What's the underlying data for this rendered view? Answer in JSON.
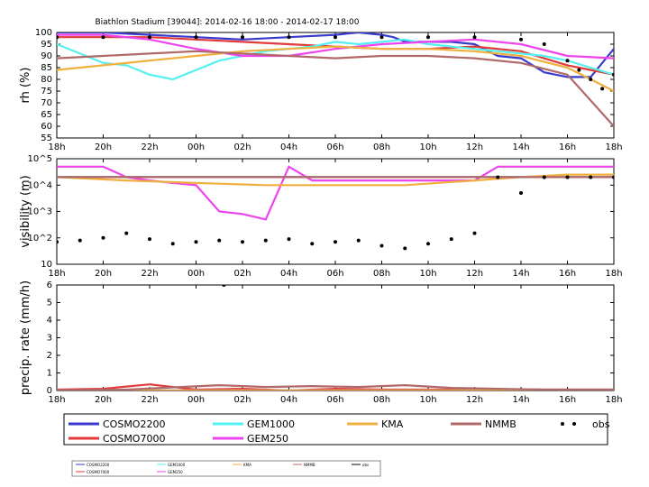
{
  "chart_data": [
    {
      "type": "line",
      "title": "Biathlon Stadium [39044]: 2014-02-16 18:00 - 2014-02-17 18:00",
      "ylabel": "rh (%)",
      "ylim": [
        55,
        100
      ],
      "yticks": [
        55,
        60,
        65,
        70,
        75,
        80,
        85,
        90,
        95,
        100
      ],
      "xlim": [
        0,
        24
      ],
      "xtick_labels": [
        "18h",
        "20h",
        "22h",
        "00h",
        "02h",
        "04h",
        "06h",
        "08h",
        "10h",
        "12h",
        "14h",
        "16h",
        "18h"
      ],
      "series": [
        {
          "name": "COSMO2200",
          "color": "#3a3acc",
          "x": [
            0,
            2,
            4,
            6,
            8,
            10,
            12,
            13,
            14,
            14.5,
            15,
            16,
            17,
            18,
            19,
            20,
            21,
            22,
            23,
            24
          ],
          "values": [
            100,
            100,
            99,
            98,
            97,
            98,
            99,
            100,
            99,
            98,
            96,
            96,
            96,
            95,
            90,
            89,
            83,
            81,
            81,
            93
          ]
        },
        {
          "name": "COSMO7000",
          "color": "#e03a3a",
          "x": [
            0,
            2,
            4,
            6,
            8,
            10,
            12,
            14,
            16,
            18,
            20,
            22,
            24
          ],
          "values": [
            98,
            98,
            98,
            97,
            96,
            95,
            94,
            93,
            93,
            94,
            92,
            86,
            82
          ]
        },
        {
          "name": "GEM1000",
          "color": "#55f0f0",
          "x": [
            0,
            1,
            2,
            3,
            4,
            5,
            6,
            7,
            8,
            9,
            10,
            11,
            12,
            13,
            14,
            15,
            16,
            17,
            18,
            19,
            20,
            21,
            22,
            23,
            24
          ],
          "values": [
            95,
            91,
            87,
            86,
            82,
            80,
            84,
            88,
            90,
            92,
            93,
            94,
            96,
            95,
            96,
            97,
            95,
            94,
            93,
            92,
            91,
            90,
            88,
            85,
            82
          ]
        },
        {
          "name": "GEM250",
          "color": "#ee44ee",
          "x": [
            0,
            2,
            4,
            6,
            8,
            10,
            12,
            14,
            16,
            18,
            20,
            22,
            24
          ],
          "values": [
            99,
            99,
            97,
            93,
            90,
            90,
            93,
            95,
            96,
            97,
            95,
            90,
            89
          ]
        },
        {
          "name": "KMA",
          "color": "#f0b040",
          "x": [
            0,
            2,
            4,
            6,
            8,
            10,
            12,
            14,
            16,
            18,
            20,
            22,
            24
          ],
          "values": [
            84,
            86,
            88,
            90,
            92,
            93,
            94,
            93,
            93,
            92,
            90,
            85,
            75
          ]
        },
        {
          "name": "NMMB",
          "color": "#b06868",
          "x": [
            0,
            2,
            4,
            6,
            8,
            10,
            12,
            14,
            16,
            18,
            20,
            22,
            24
          ],
          "values": [
            89,
            90,
            91,
            92,
            91,
            90,
            89,
            90,
            90,
            89,
            87,
            82,
            60
          ]
        },
        {
          "name": "obs",
          "color": "#000000",
          "marker": "dot",
          "x": [
            0,
            2,
            4,
            6,
            8,
            10,
            12,
            14,
            16,
            18,
            20,
            21,
            22,
            22.5,
            23,
            23.5,
            24
          ],
          "values": [
            98,
            98,
            98,
            98,
            98,
            98,
            98,
            98,
            98,
            98,
            97,
            95,
            88,
            84,
            80,
            76,
            82
          ]
        }
      ]
    },
    {
      "type": "line",
      "ylabel": "visibility (m)",
      "yscale": "log",
      "ylim": [
        10,
        100000
      ],
      "ytick_labels": [
        "10",
        "10^2",
        "10^3",
        "10^4",
        "10^5"
      ],
      "xlim": [
        0,
        24
      ],
      "xtick_labels": [
        "18h",
        "20h",
        "22h",
        "00h",
        "02h",
        "04h",
        "06h",
        "08h",
        "10h",
        "12h",
        "14h",
        "16h",
        "18h"
      ],
      "series": [
        {
          "name": "COSMO2200",
          "color": "#3a3acc",
          "x": [
            0,
            24
          ],
          "values": [
            20000,
            20000
          ]
        },
        {
          "name": "COSMO7000",
          "color": "#e03a3a",
          "x": [
            0,
            24
          ],
          "values": [
            20000,
            20000
          ]
        },
        {
          "name": "GEM1000",
          "color": "#55f0f0",
          "x": [
            0,
            24
          ],
          "values": [
            20000,
            20000
          ]
        },
        {
          "name": "GEM250",
          "color": "#ee44ee",
          "x": [
            0,
            1,
            2,
            3,
            4,
            5,
            6,
            7,
            8,
            9,
            10,
            11,
            12,
            13,
            14,
            15,
            16,
            17,
            18,
            19,
            20,
            21,
            22,
            23,
            24
          ],
          "values": [
            50000,
            50000,
            50000,
            20000,
            15000,
            12000,
            10000,
            1000,
            800,
            500,
            50000,
            15000,
            15000,
            15000,
            15000,
            15000,
            15000,
            15000,
            15000,
            50000,
            50000,
            50000,
            50000,
            50000,
            50000
          ]
        },
        {
          "name": "KMA",
          "color": "#f0b040",
          "x": [
            0,
            3,
            6,
            9,
            12,
            15,
            18,
            20,
            22,
            24
          ],
          "values": [
            20000,
            15000,
            12000,
            10000,
            10000,
            10000,
            15000,
            20000,
            25000,
            25000
          ]
        },
        {
          "name": "NMMB",
          "color": "#b06868",
          "x": [
            0,
            24
          ],
          "values": [
            20000,
            20000
          ]
        },
        {
          "name": "obs",
          "color": "#000000",
          "marker": "dot",
          "x": [
            0,
            1,
            2,
            3,
            4,
            5,
            6,
            7,
            8,
            9,
            10,
            11,
            12,
            13,
            14,
            15,
            16,
            17,
            18,
            19,
            20,
            21,
            22,
            23,
            24
          ],
          "values": [
            70,
            80,
            100,
            150,
            90,
            60,
            70,
            80,
            70,
            80,
            90,
            60,
            70,
            80,
            50,
            40,
            60,
            90,
            150,
            20000,
            5000,
            20000,
            20000,
            20000,
            20000
          ]
        }
      ]
    },
    {
      "type": "line",
      "ylabel": "precip. rate (mm/h)",
      "ylim": [
        0,
        6
      ],
      "yticks": [
        0,
        1,
        2,
        3,
        4,
        5,
        6
      ],
      "xlim": [
        0,
        24
      ],
      "xtick_labels": [
        "18h",
        "20h",
        "22h",
        "00h",
        "02h",
        "04h",
        "06h",
        "08h",
        "10h",
        "12h",
        "14h",
        "16h",
        "18h"
      ],
      "series": [
        {
          "name": "COSMO2200",
          "color": "#3a3acc",
          "x": [
            0,
            24
          ],
          "values": [
            0,
            0
          ]
        },
        {
          "name": "COSMO7000",
          "color": "#e03a3a",
          "x": [
            0,
            2,
            4,
            6,
            8,
            10,
            12,
            14,
            16,
            18,
            20,
            22,
            24
          ],
          "values": [
            0.05,
            0.1,
            0.35,
            0.05,
            0.1,
            0,
            0.1,
            0.05,
            0.05,
            0.05,
            0.05,
            0.05,
            0.05
          ]
        },
        {
          "name": "GEM1000",
          "color": "#55f0f0",
          "x": [
            0,
            24
          ],
          "values": [
            0,
            0
          ]
        },
        {
          "name": "GEM250",
          "color": "#ee44ee",
          "x": [
            0,
            24
          ],
          "values": [
            0,
            0
          ]
        },
        {
          "name": "KMA",
          "color": "#f0b040",
          "x": [
            0,
            24
          ],
          "values": [
            0,
            0
          ]
        },
        {
          "name": "NMMB",
          "color": "#b06868",
          "x": [
            0,
            3,
            7,
            9,
            11,
            13,
            15,
            17,
            19,
            21,
            23,
            24
          ],
          "values": [
            0,
            0.05,
            0.3,
            0.2,
            0.25,
            0.2,
            0.3,
            0.15,
            0.1,
            0.05,
            0.05,
            0.05
          ]
        },
        {
          "name": "obs",
          "color": "#000000",
          "marker": "dot",
          "x": [
            7.2
          ],
          "values": [
            6
          ]
        }
      ]
    }
  ],
  "legend": [
    {
      "name": "COSMO2200",
      "color": "#3a3acc"
    },
    {
      "name": "COSMO7000",
      "color": "#e03a3a"
    },
    {
      "name": "GEM1000",
      "color": "#55f0f0"
    },
    {
      "name": "GEM250",
      "color": "#ee44ee"
    },
    {
      "name": "KMA",
      "color": "#f0b040"
    },
    {
      "name": "NMMB",
      "color": "#b06868"
    },
    {
      "name": "obs",
      "color": "#000000",
      "marker": "dot"
    }
  ],
  "legend_small": [
    {
      "name": "COSMO2200",
      "color": "#3a3acc"
    },
    {
      "name": "COSMO7000",
      "color": "#e03a3a"
    },
    {
      "name": "GEM1000",
      "color": "#55f0f0"
    },
    {
      "name": "GEM250",
      "color": "#ee44ee"
    },
    {
      "name": "KMA",
      "color": "#f0b040"
    },
    {
      "name": "NMMB",
      "color": "#b06868"
    },
    {
      "name": "obs",
      "color": "#000000",
      "marker": "dot"
    }
  ]
}
